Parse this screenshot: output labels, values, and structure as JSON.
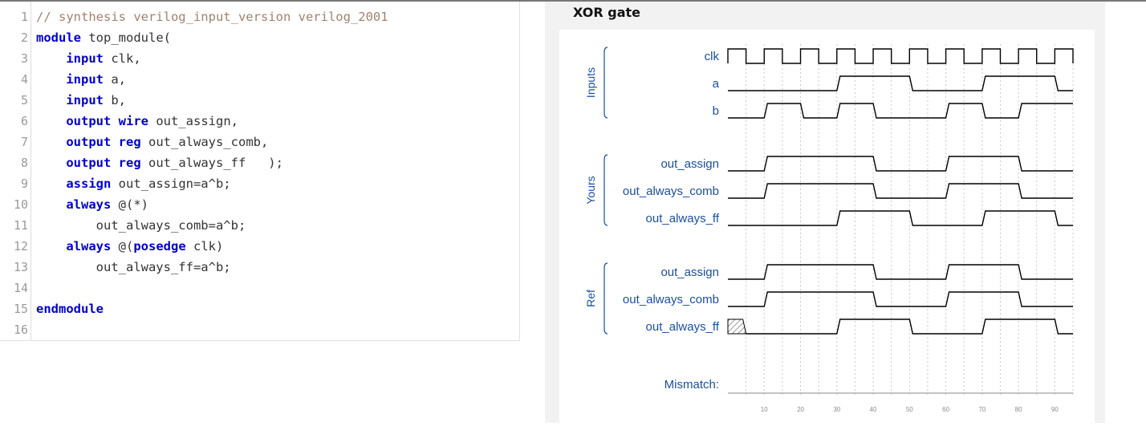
{
  "editor": {
    "lines": [
      {
        "n": "1",
        "tokens": [
          {
            "t": "// synthesis verilog_input_version verilog_2001",
            "k": "cm"
          }
        ]
      },
      {
        "n": "2",
        "tokens": [
          {
            "t": "module",
            "k": "kw"
          },
          {
            "t": " top_module(",
            "k": "pl"
          }
        ]
      },
      {
        "n": "3",
        "tokens": [
          {
            "t": "    ",
            "k": "pl"
          },
          {
            "t": "input",
            "k": "kw"
          },
          {
            "t": " clk,",
            "k": "pl"
          }
        ]
      },
      {
        "n": "4",
        "tokens": [
          {
            "t": "    ",
            "k": "pl"
          },
          {
            "t": "input",
            "k": "kw"
          },
          {
            "t": " a,",
            "k": "pl"
          }
        ]
      },
      {
        "n": "5",
        "tokens": [
          {
            "t": "    ",
            "k": "pl"
          },
          {
            "t": "input",
            "k": "kw"
          },
          {
            "t": " b,",
            "k": "pl"
          }
        ]
      },
      {
        "n": "6",
        "tokens": [
          {
            "t": "    ",
            "k": "pl"
          },
          {
            "t": "output",
            "k": "kw"
          },
          {
            "t": " ",
            "k": "pl"
          },
          {
            "t": "wire",
            "k": "kw"
          },
          {
            "t": " out_assign,",
            "k": "pl"
          }
        ]
      },
      {
        "n": "7",
        "tokens": [
          {
            "t": "    ",
            "k": "pl"
          },
          {
            "t": "output",
            "k": "kw"
          },
          {
            "t": " ",
            "k": "pl"
          },
          {
            "t": "reg",
            "k": "kw"
          },
          {
            "t": " out_always_comb,",
            "k": "pl"
          }
        ]
      },
      {
        "n": "8",
        "tokens": [
          {
            "t": "    ",
            "k": "pl"
          },
          {
            "t": "output",
            "k": "kw"
          },
          {
            "t": " ",
            "k": "pl"
          },
          {
            "t": "reg",
            "k": "kw"
          },
          {
            "t": " out_always_ff   );",
            "k": "pl"
          }
        ]
      },
      {
        "n": "9",
        "tokens": [
          {
            "t": "    ",
            "k": "pl"
          },
          {
            "t": "assign",
            "k": "kw"
          },
          {
            "t": " out_assign=a^b;",
            "k": "pl"
          }
        ]
      },
      {
        "n": "10",
        "tokens": [
          {
            "t": "    ",
            "k": "pl"
          },
          {
            "t": "always",
            "k": "kw"
          },
          {
            "t": " @(*)",
            "k": "pl"
          }
        ]
      },
      {
        "n": "11",
        "tokens": [
          {
            "t": "        out_always_comb=a^b;",
            "k": "pl"
          }
        ]
      },
      {
        "n": "12",
        "tokens": [
          {
            "t": "    ",
            "k": "pl"
          },
          {
            "t": "always",
            "k": "kw"
          },
          {
            "t": " @(",
            "k": "pl"
          },
          {
            "t": "posedge",
            "k": "kw"
          },
          {
            "t": " clk)",
            "k": "pl"
          }
        ]
      },
      {
        "n": "13",
        "tokens": [
          {
            "t": "        out_always_ff=a^b;",
            "k": "pl"
          }
        ]
      },
      {
        "n": "14",
        "tokens": []
      },
      {
        "n": "15",
        "tokens": [
          {
            "t": "endmodule",
            "k": "kw"
          }
        ]
      },
      {
        "n": "16",
        "tokens": []
      }
    ]
  },
  "waveform": {
    "title": "XOR gate",
    "colors": {
      "label": "#1a4fa0",
      "signal": "#000000",
      "grid": "#c8c8c8",
      "axis": "#888888",
      "hatch": "#333333"
    },
    "groups": [
      {
        "name": "Inputs",
        "signals": [
          {
            "label": "clk",
            "kind": "clk"
          },
          {
            "label": "a",
            "kind": "wave",
            "t": [
              0,
              30,
              50,
              70,
              90
            ],
            "v": [
              0,
              1,
              0,
              1,
              0
            ]
          },
          {
            "label": "b",
            "kind": "wave",
            "t": [
              0,
              10,
              20,
              30,
              40,
              60,
              70,
              80
            ],
            "v": [
              0,
              1,
              0,
              1,
              0,
              1,
              0,
              1
            ]
          }
        ]
      },
      {
        "name": "Yours",
        "signals": [
          {
            "label": "out_assign",
            "kind": "wave",
            "t": [
              0,
              10,
              40,
              60,
              80
            ],
            "v": [
              0,
              1,
              0,
              1,
              0
            ]
          },
          {
            "label": "out_always_comb",
            "kind": "wave",
            "t": [
              0,
              10,
              40,
              60,
              80
            ],
            "v": [
              0,
              1,
              0,
              1,
              0
            ]
          },
          {
            "label": "out_always_ff",
            "kind": "wave",
            "t": [
              0,
              30,
              50,
              70,
              90
            ],
            "v": [
              0,
              1,
              0,
              1,
              0
            ]
          }
        ]
      },
      {
        "name": "Ref",
        "signals": [
          {
            "label": "out_assign",
            "kind": "wave",
            "t": [
              0,
              10,
              40,
              60,
              80
            ],
            "v": [
              0,
              1,
              0,
              1,
              0
            ]
          },
          {
            "label": "out_always_comb",
            "kind": "wave",
            "t": [
              0,
              10,
              40,
              60,
              80
            ],
            "v": [
              0,
              1,
              0,
              1,
              0
            ]
          },
          {
            "label": "out_always_ff",
            "kind": "wave",
            "t": [
              0,
              5,
              30,
              50,
              70,
              90
            ],
            "v": [
              "x",
              0,
              1,
              0,
              1,
              0
            ]
          }
        ]
      }
    ],
    "mismatch_label": "Mismatch:",
    "time_range": [
      0,
      95
    ],
    "clock_period": 10,
    "ticks": [
      10,
      20,
      30,
      40,
      50,
      60,
      70,
      80,
      90
    ]
  }
}
